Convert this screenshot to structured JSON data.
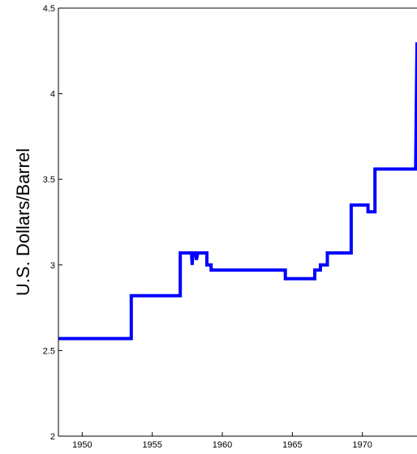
{
  "chart_data": {
    "type": "line",
    "title": "",
    "xlabel": "",
    "ylabel": "U.S. Dollars/Barrel",
    "xlim": [
      1948.3,
      1973.9
    ],
    "ylim": [
      2,
      4.5
    ],
    "xticks": [
      1950,
      1955,
      1960,
      1965,
      1970
    ],
    "xtick_labels": [
      "1950",
      "1955",
      "1960",
      "1965",
      "1970"
    ],
    "yticks": [
      2,
      2.5,
      3,
      3.5,
      4,
      4.5
    ],
    "ytick_labels": [
      "2",
      "2.5",
      "3",
      "3.5",
      "4",
      "4.5"
    ],
    "grid": false,
    "series": [
      {
        "color": "#0000ff",
        "step": true,
        "points": [
          [
            1948.3,
            2.57
          ],
          [
            1953.5,
            2.57
          ],
          [
            1953.5,
            2.82
          ],
          [
            1957.0,
            2.82
          ],
          [
            1957.0,
            3.07
          ],
          [
            1957.8,
            3.07
          ],
          [
            1957.85,
            3.0
          ],
          [
            1957.9,
            3.07
          ],
          [
            1958.1,
            3.07
          ],
          [
            1958.15,
            3.03
          ],
          [
            1958.25,
            3.07
          ],
          [
            1958.9,
            3.07
          ],
          [
            1958.9,
            3.0
          ],
          [
            1959.2,
            3.0
          ],
          [
            1959.2,
            2.97
          ],
          [
            1964.5,
            2.97
          ],
          [
            1964.5,
            2.92
          ],
          [
            1966.6,
            2.92
          ],
          [
            1966.6,
            2.97
          ],
          [
            1967.0,
            2.97
          ],
          [
            1967.0,
            3.0
          ],
          [
            1967.5,
            3.0
          ],
          [
            1967.5,
            3.07
          ],
          [
            1969.2,
            3.07
          ],
          [
            1969.2,
            3.35
          ],
          [
            1970.4,
            3.35
          ],
          [
            1970.4,
            3.31
          ],
          [
            1970.9,
            3.31
          ],
          [
            1970.9,
            3.56
          ],
          [
            1973.8,
            3.56
          ],
          [
            1973.9,
            4.3
          ]
        ]
      }
    ]
  }
}
